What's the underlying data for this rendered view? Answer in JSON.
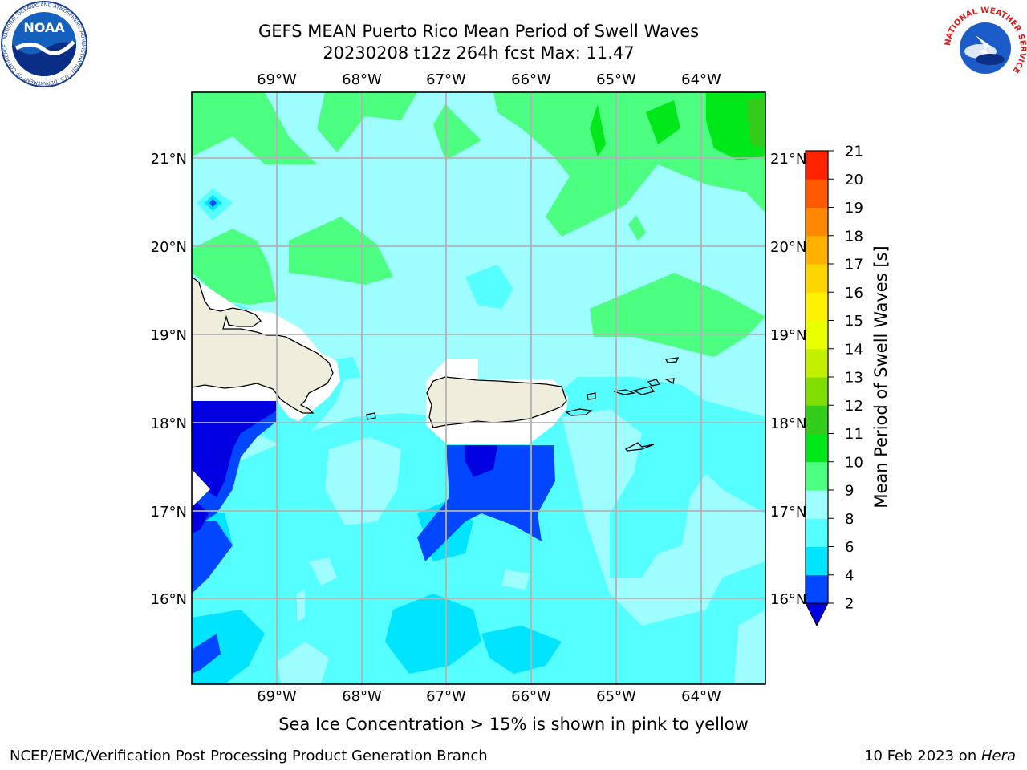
{
  "title_line1": "GEFS MEAN Puerto Rico Mean Period of Swell Waves",
  "title_line2": "20230208 t12z 264h fcst   Max: 11.47",
  "map": {
    "lon_ticks": [
      "69°W",
      "68°W",
      "67°W",
      "66°W",
      "65°W",
      "64°W"
    ],
    "lat_ticks": [
      "21°N",
      "20°N",
      "19°N",
      "18°N",
      "17°N",
      "16°N"
    ],
    "grid": true,
    "region": "Puerto Rico"
  },
  "colorbar": {
    "label": "Mean Period of Swell Waves [s]",
    "ticks": [
      "2",
      "4",
      "6",
      "8",
      "9",
      "10",
      "11",
      "12",
      "13",
      "14",
      "15",
      "16",
      "17",
      "18",
      "19",
      "20",
      "21"
    ],
    "colors": [
      "#0047ff",
      "#00e4ff",
      "#55ffff",
      "#9efeff",
      "#4cff80",
      "#00e81a",
      "#33cc1a",
      "#7fdd00",
      "#c4f000",
      "#eaff00",
      "#fff200",
      "#ffd500",
      "#ffb000",
      "#ff8800",
      "#ff5a00",
      "#ff2200"
    ],
    "extend_min_color": "#0000e0"
  },
  "note": "Sea Ice Concentration > 15% is shown in pink to yellow",
  "footer": {
    "left": "NCEP/EMC/Verification Post Processing Product Generation Branch",
    "right_date": "10 Feb 2023 on ",
    "right_host": "Hera"
  },
  "logos": {
    "left": "NOAA",
    "left_ring": "NATIONAL OCEANIC AND ATMOSPHERIC ADMINISTRATION · U.S. DEPARTMENT OF COMMERCE",
    "right_ring": "NATIONAL WEATHER SERVICE"
  }
}
